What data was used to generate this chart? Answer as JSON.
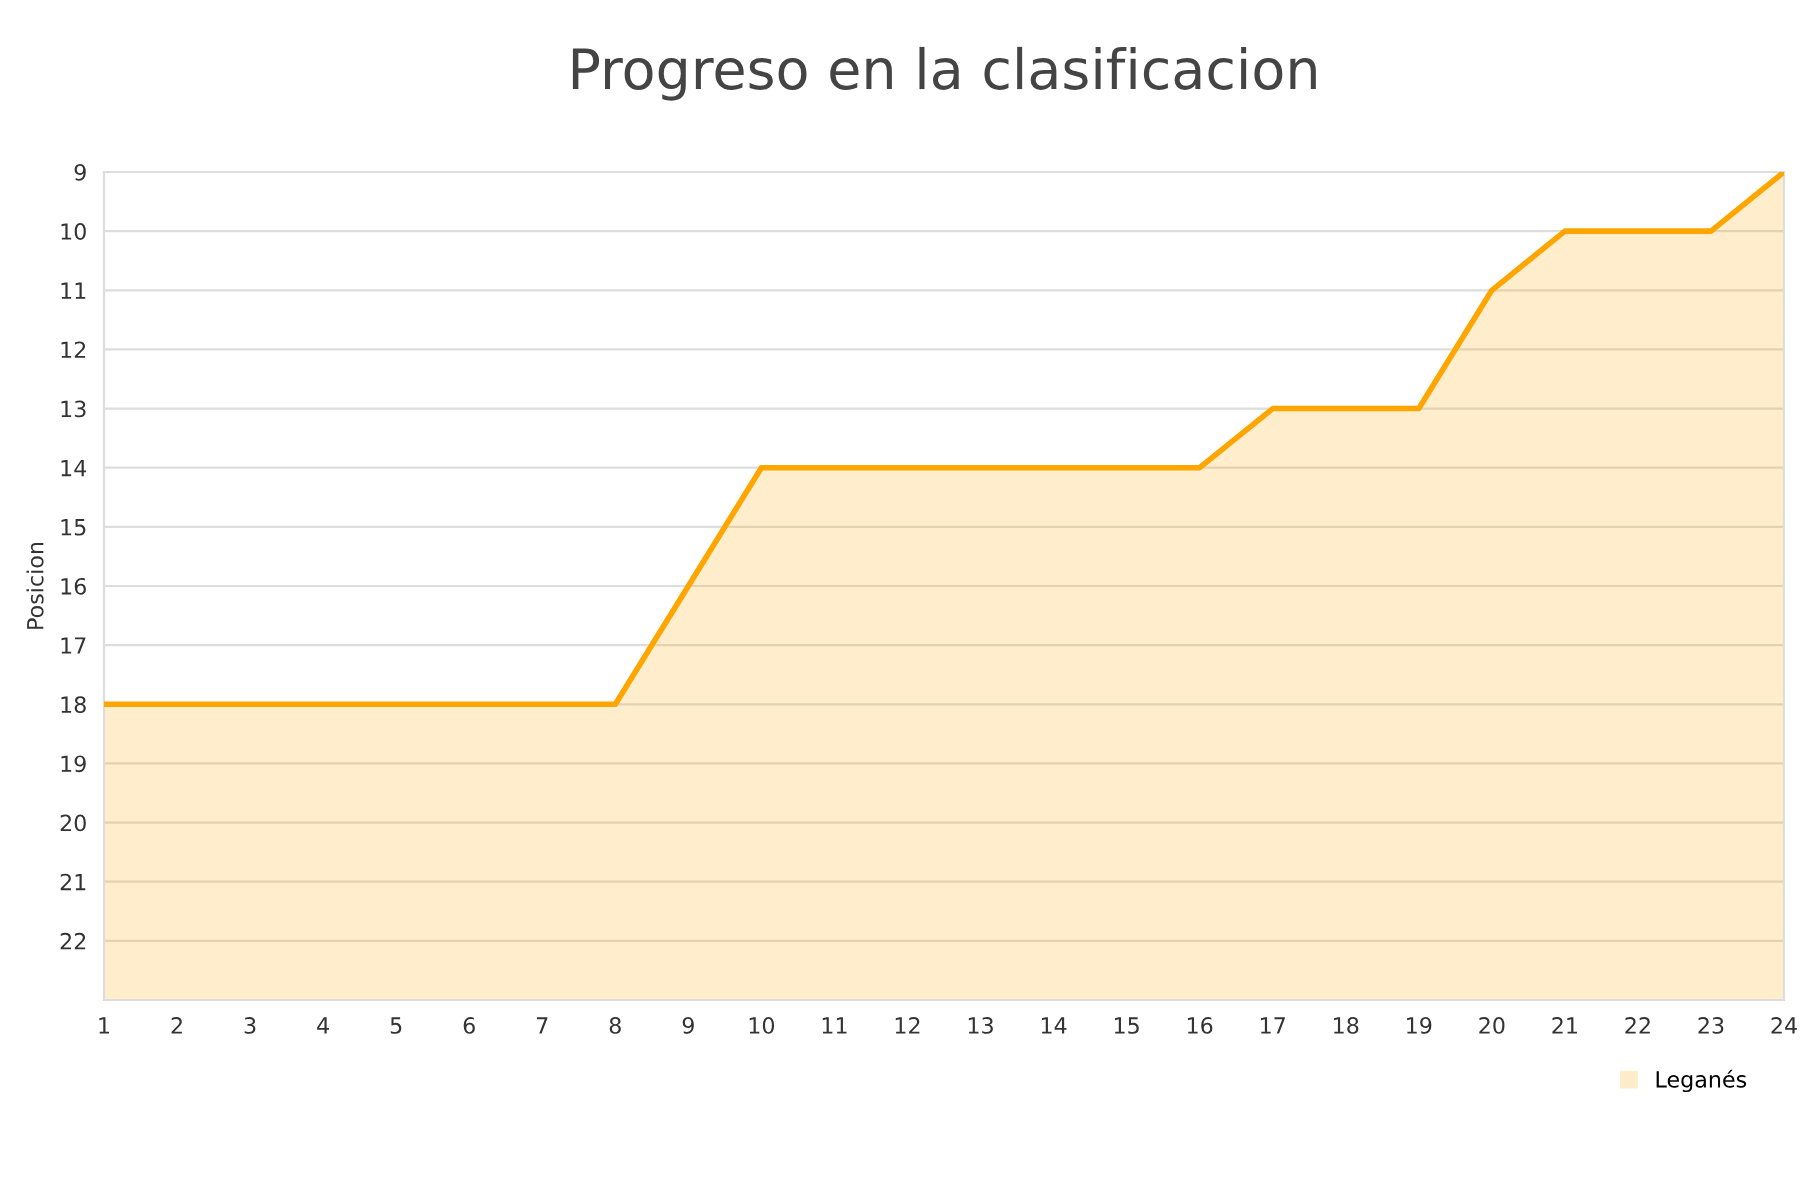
{
  "chart_data": {
    "type": "area",
    "title": "Progreso en la clasificacion",
    "ylabel": "Posicion",
    "x": [
      1,
      2,
      3,
      4,
      5,
      6,
      7,
      8,
      9,
      10,
      11,
      12,
      13,
      14,
      15,
      16,
      17,
      18,
      19,
      20,
      21,
      22,
      23,
      24
    ],
    "series": [
      {
        "name": "Leganés",
        "color": "#ffa500",
        "values": [
          18,
          18,
          18,
          18,
          18,
          18,
          18,
          18,
          16,
          14,
          14,
          14,
          14,
          14,
          14,
          14,
          13,
          13,
          13,
          11,
          10,
          10,
          10,
          9
        ]
      }
    ],
    "xlim": [
      1,
      24
    ],
    "xticks": [
      1,
      2,
      3,
      4,
      5,
      6,
      7,
      8,
      9,
      10,
      11,
      12,
      13,
      14,
      15,
      16,
      17,
      18,
      19,
      20,
      21,
      22,
      23,
      24
    ],
    "ylim": [
      23,
      9
    ],
    "yticks": [
      9,
      10,
      11,
      12,
      13,
      14,
      15,
      16,
      17,
      18,
      19,
      20,
      21,
      22
    ],
    "grid": "y",
    "legend": "bottom right"
  }
}
